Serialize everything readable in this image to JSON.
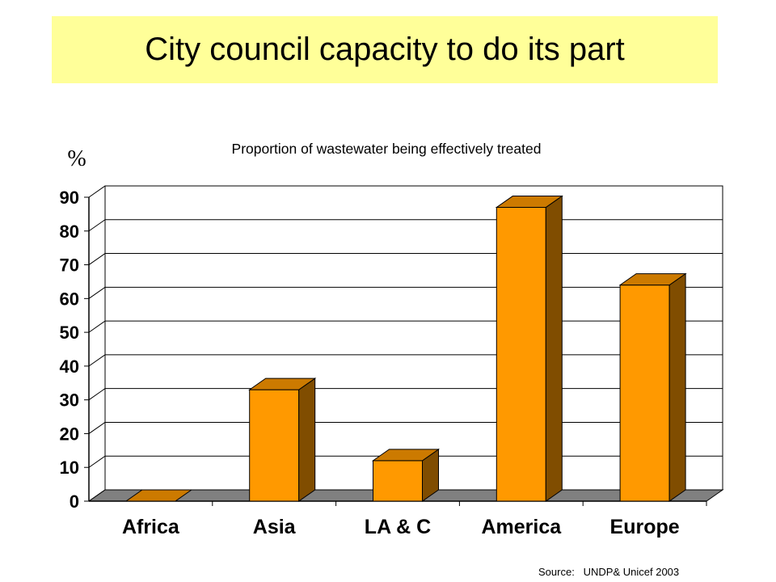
{
  "slide": {
    "title": "City council capacity to do its part",
    "source": "Source:   UNDP& Unicef 2003"
  },
  "chart_data": {
    "type": "bar",
    "title": "Proportion of wastewater being effectively treated",
    "ylabel": "%",
    "xlabel": "",
    "categories": [
      "Africa",
      "Asia",
      "LA & C",
      "America",
      "Europe"
    ],
    "values": [
      0,
      33,
      12,
      87,
      64
    ],
    "ylim": [
      0,
      90
    ],
    "yticks": [
      0,
      10,
      20,
      30,
      40,
      50,
      60,
      70,
      80,
      90
    ],
    "grid": true,
    "style": "3d",
    "colors": {
      "bar_front": "#ff9900",
      "bar_top": "#cc7a00",
      "bar_side": "#804d00",
      "floor": "#808080"
    }
  }
}
